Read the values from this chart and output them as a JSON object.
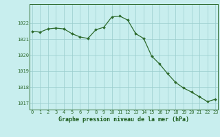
{
  "x": [
    0,
    1,
    2,
    3,
    4,
    5,
    6,
    7,
    8,
    9,
    10,
    11,
    12,
    13,
    14,
    15,
    16,
    17,
    18,
    19,
    20,
    21,
    22,
    23
  ],
  "y": [
    1021.5,
    1021.45,
    1021.65,
    1021.7,
    1021.65,
    1021.35,
    1021.15,
    1021.05,
    1021.6,
    1021.75,
    1022.4,
    1022.45,
    1022.2,
    1021.35,
    1021.05,
    1019.95,
    1019.45,
    1018.85,
    1018.3,
    1017.95,
    1017.7,
    1017.4,
    1017.1,
    1017.25
  ],
  "line_color": "#2d6a2d",
  "marker_color": "#2d6a2d",
  "bg_color": "#c8eeee",
  "grid_color": "#99cccc",
  "ylim_min": 1016.6,
  "ylim_max": 1023.2,
  "yticks": [
    1017,
    1018,
    1019,
    1020,
    1021,
    1022
  ],
  "xticks": [
    0,
    1,
    2,
    3,
    4,
    5,
    6,
    7,
    8,
    9,
    10,
    11,
    12,
    13,
    14,
    15,
    16,
    17,
    18,
    19,
    20,
    21,
    22,
    23
  ],
  "tick_fontsize": 5.0,
  "title": "Graphe pression niveau de la mer (hPa)",
  "title_fontsize": 6.0,
  "title_color": "#1a5a1a",
  "axis_color": "#2d6a2d",
  "line_width": 0.9,
  "marker_size": 2.0
}
